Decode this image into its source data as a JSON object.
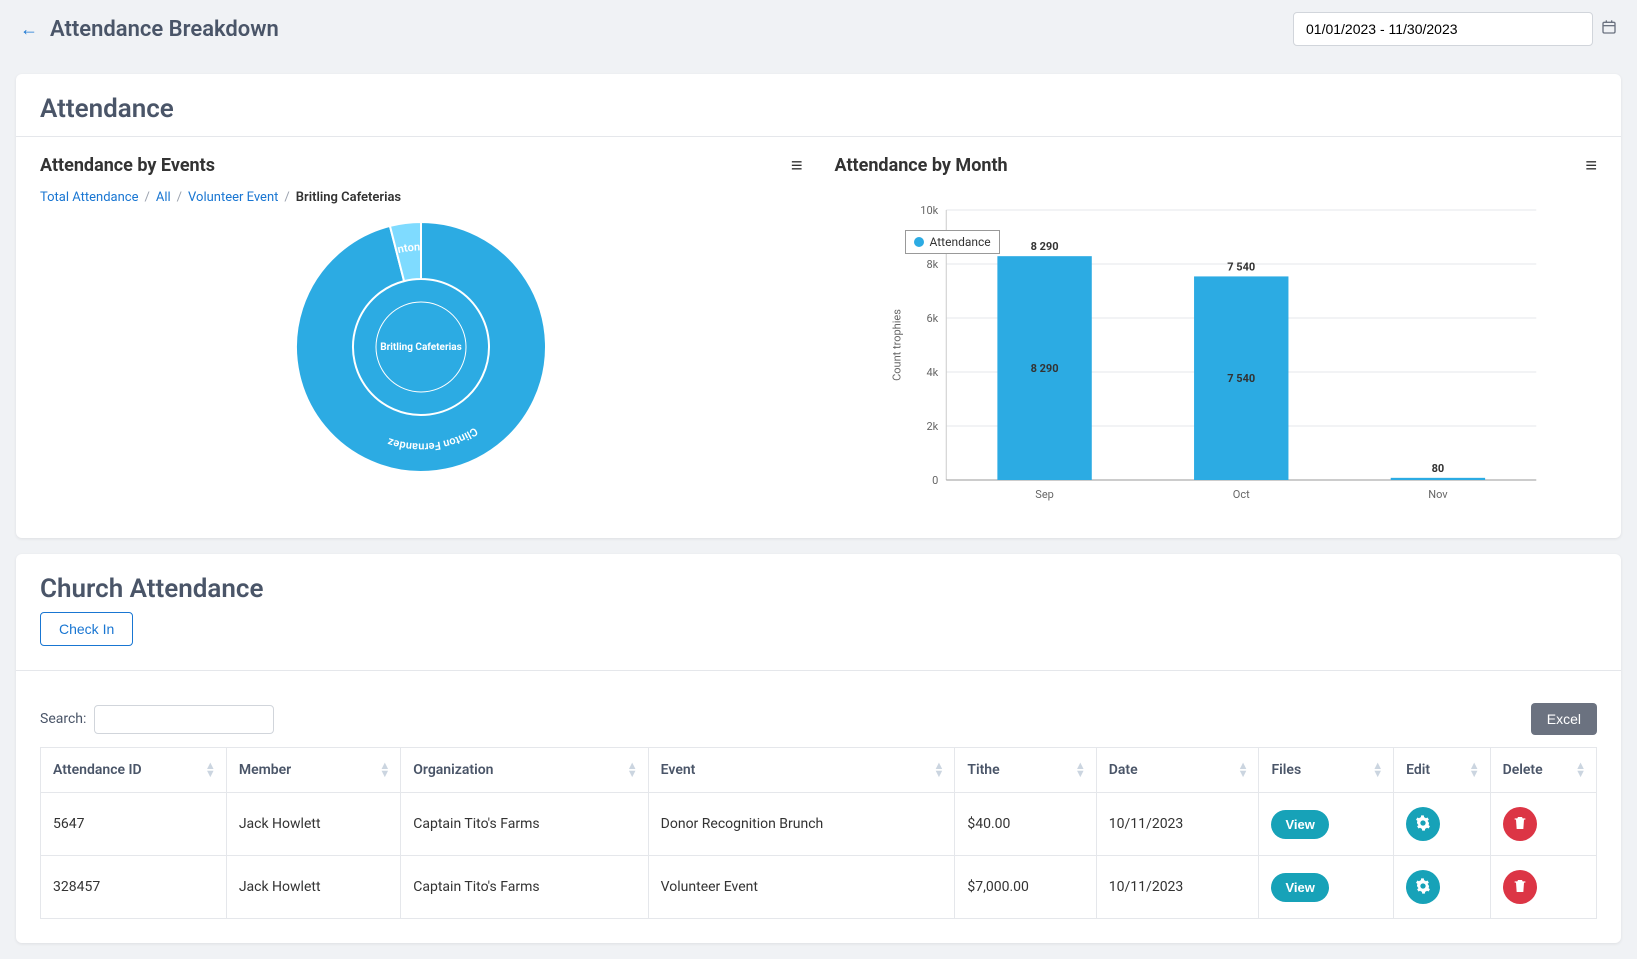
{
  "header": {
    "title": "Attendance Breakdown",
    "date_range": "01/01/2023 - 11/30/2023"
  },
  "attendance_card": {
    "title": "Attendance",
    "events_chart": {
      "title": "Attendance by Events",
      "breadcrumb": [
        {
          "label": "Total Attendance",
          "link": true
        },
        {
          "label": "All",
          "link": true
        },
        {
          "label": "Volunteer Event",
          "link": true
        },
        {
          "label": "Britling Cafeterias",
          "link": false
        }
      ],
      "type": "sunburst",
      "center_label": "Britling Cafeterias",
      "outer_segments": [
        {
          "label": "Clinton Fernandez",
          "value": 96,
          "color": "#2cabe3"
        },
        {
          "label": "Clinton ...",
          "value": 4,
          "color": "#7fdbff"
        }
      ],
      "inner_color": "#2cabe3",
      "label_color": "#ffffff",
      "label_fontsize": 11
    },
    "month_chart": {
      "title": "Attendance by Month",
      "type": "bar",
      "categories": [
        "Sep",
        "Oct",
        "Nov"
      ],
      "values": [
        8290,
        7540,
        80
      ],
      "value_labels": [
        "8 290",
        "7 540",
        "80"
      ],
      "bar_labels_inside": [
        "8 290",
        "7 540",
        ""
      ],
      "bar_color": "#2cabe3",
      "ylabel": "Count trophies",
      "ylim": [
        0,
        10000
      ],
      "ytick_step": 2000,
      "ytick_labels": [
        "0",
        "2k",
        "4k",
        "6k",
        "8k",
        "10k"
      ],
      "grid_color": "#e5e7eb",
      "legend_label": "Attendance",
      "legend_color": "#2cabe3",
      "axis_fontsize": 11,
      "label_fontsize": 11
    }
  },
  "church_card": {
    "title": "Church Attendance",
    "checkin_label": "Check In",
    "search_label": "Search:",
    "excel_label": "Excel",
    "columns": [
      "Attendance ID",
      "Member",
      "Organization",
      "Event",
      "Tithe",
      "Date",
      "Files",
      "Edit",
      "Delete"
    ],
    "rows": [
      {
        "id": "5647",
        "member": "Jack Howlett",
        "org": "Captain Tito's Farms",
        "event": "Donor Recognition Brunch",
        "tithe": "$40.00",
        "date": "10/11/2023",
        "view": "View"
      },
      {
        "id": "328457",
        "member": "Jack Howlett",
        "org": "Captain Tito's Farms",
        "event": "Volunteer Event",
        "tithe": "$7,000.00",
        "date": "10/11/2023",
        "view": "View"
      }
    ]
  }
}
